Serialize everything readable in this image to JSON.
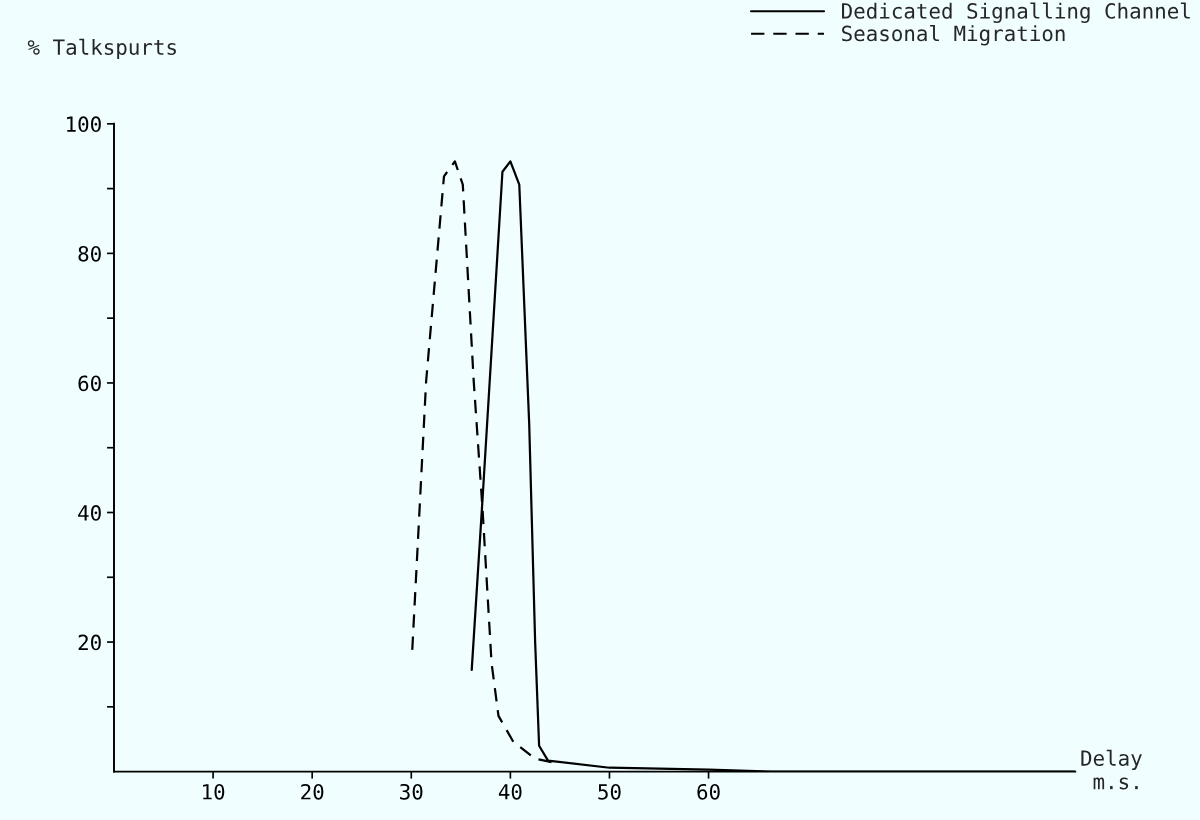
{
  "chart_data": {
    "type": "line",
    "xlabel": "Delay\nm.s.",
    "ylabel": "% Talkspurts",
    "xlim": [
      0,
      97
    ],
    "ylim": [
      0,
      100
    ],
    "xticks": [
      10,
      20,
      30,
      40,
      50,
      60
    ],
    "yticks": [
      {
        "value": 10,
        "label": null
      },
      20,
      {
        "value": 30,
        "label": null
      },
      40,
      {
        "value": 50,
        "label": null
      },
      60,
      {
        "value": 70,
        "label": null
      },
      80,
      {
        "value": 90,
        "label": null
      },
      100
    ],
    "legend": "top right",
    "grid": false,
    "series": [
      {
        "name": "Dedicated Signalling Channel",
        "color": "#000000",
        "line_style": "solid",
        "x": [
          36.1,
          37.2,
          39.2,
          40.0,
          40.9,
          41.9,
          42.5,
          42.9,
          43.8,
          50,
          60,
          66.3,
          97
        ],
        "values": [
          15.7,
          42.3,
          92.6,
          94.2,
          90.6,
          53.7,
          20,
          4.0,
          1.7,
          0.6,
          0.3,
          0,
          0
        ]
      },
      {
        "name": "Seasonal Migration",
        "color": "#000000",
        "line_style": "dashed",
        "x": [
          30.1,
          30.6,
          31.5,
          33.3,
          34.4,
          35.2,
          36.3,
          37.2,
          38.1,
          38.8,
          40.3,
          42.5,
          45
        ],
        "values": [
          18.8,
          33.5,
          60.3,
          91.9,
          94.2,
          90.6,
          60.3,
          40.3,
          16.8,
          8.6,
          4.6,
          2.0,
          1.2
        ]
      }
    ]
  }
}
